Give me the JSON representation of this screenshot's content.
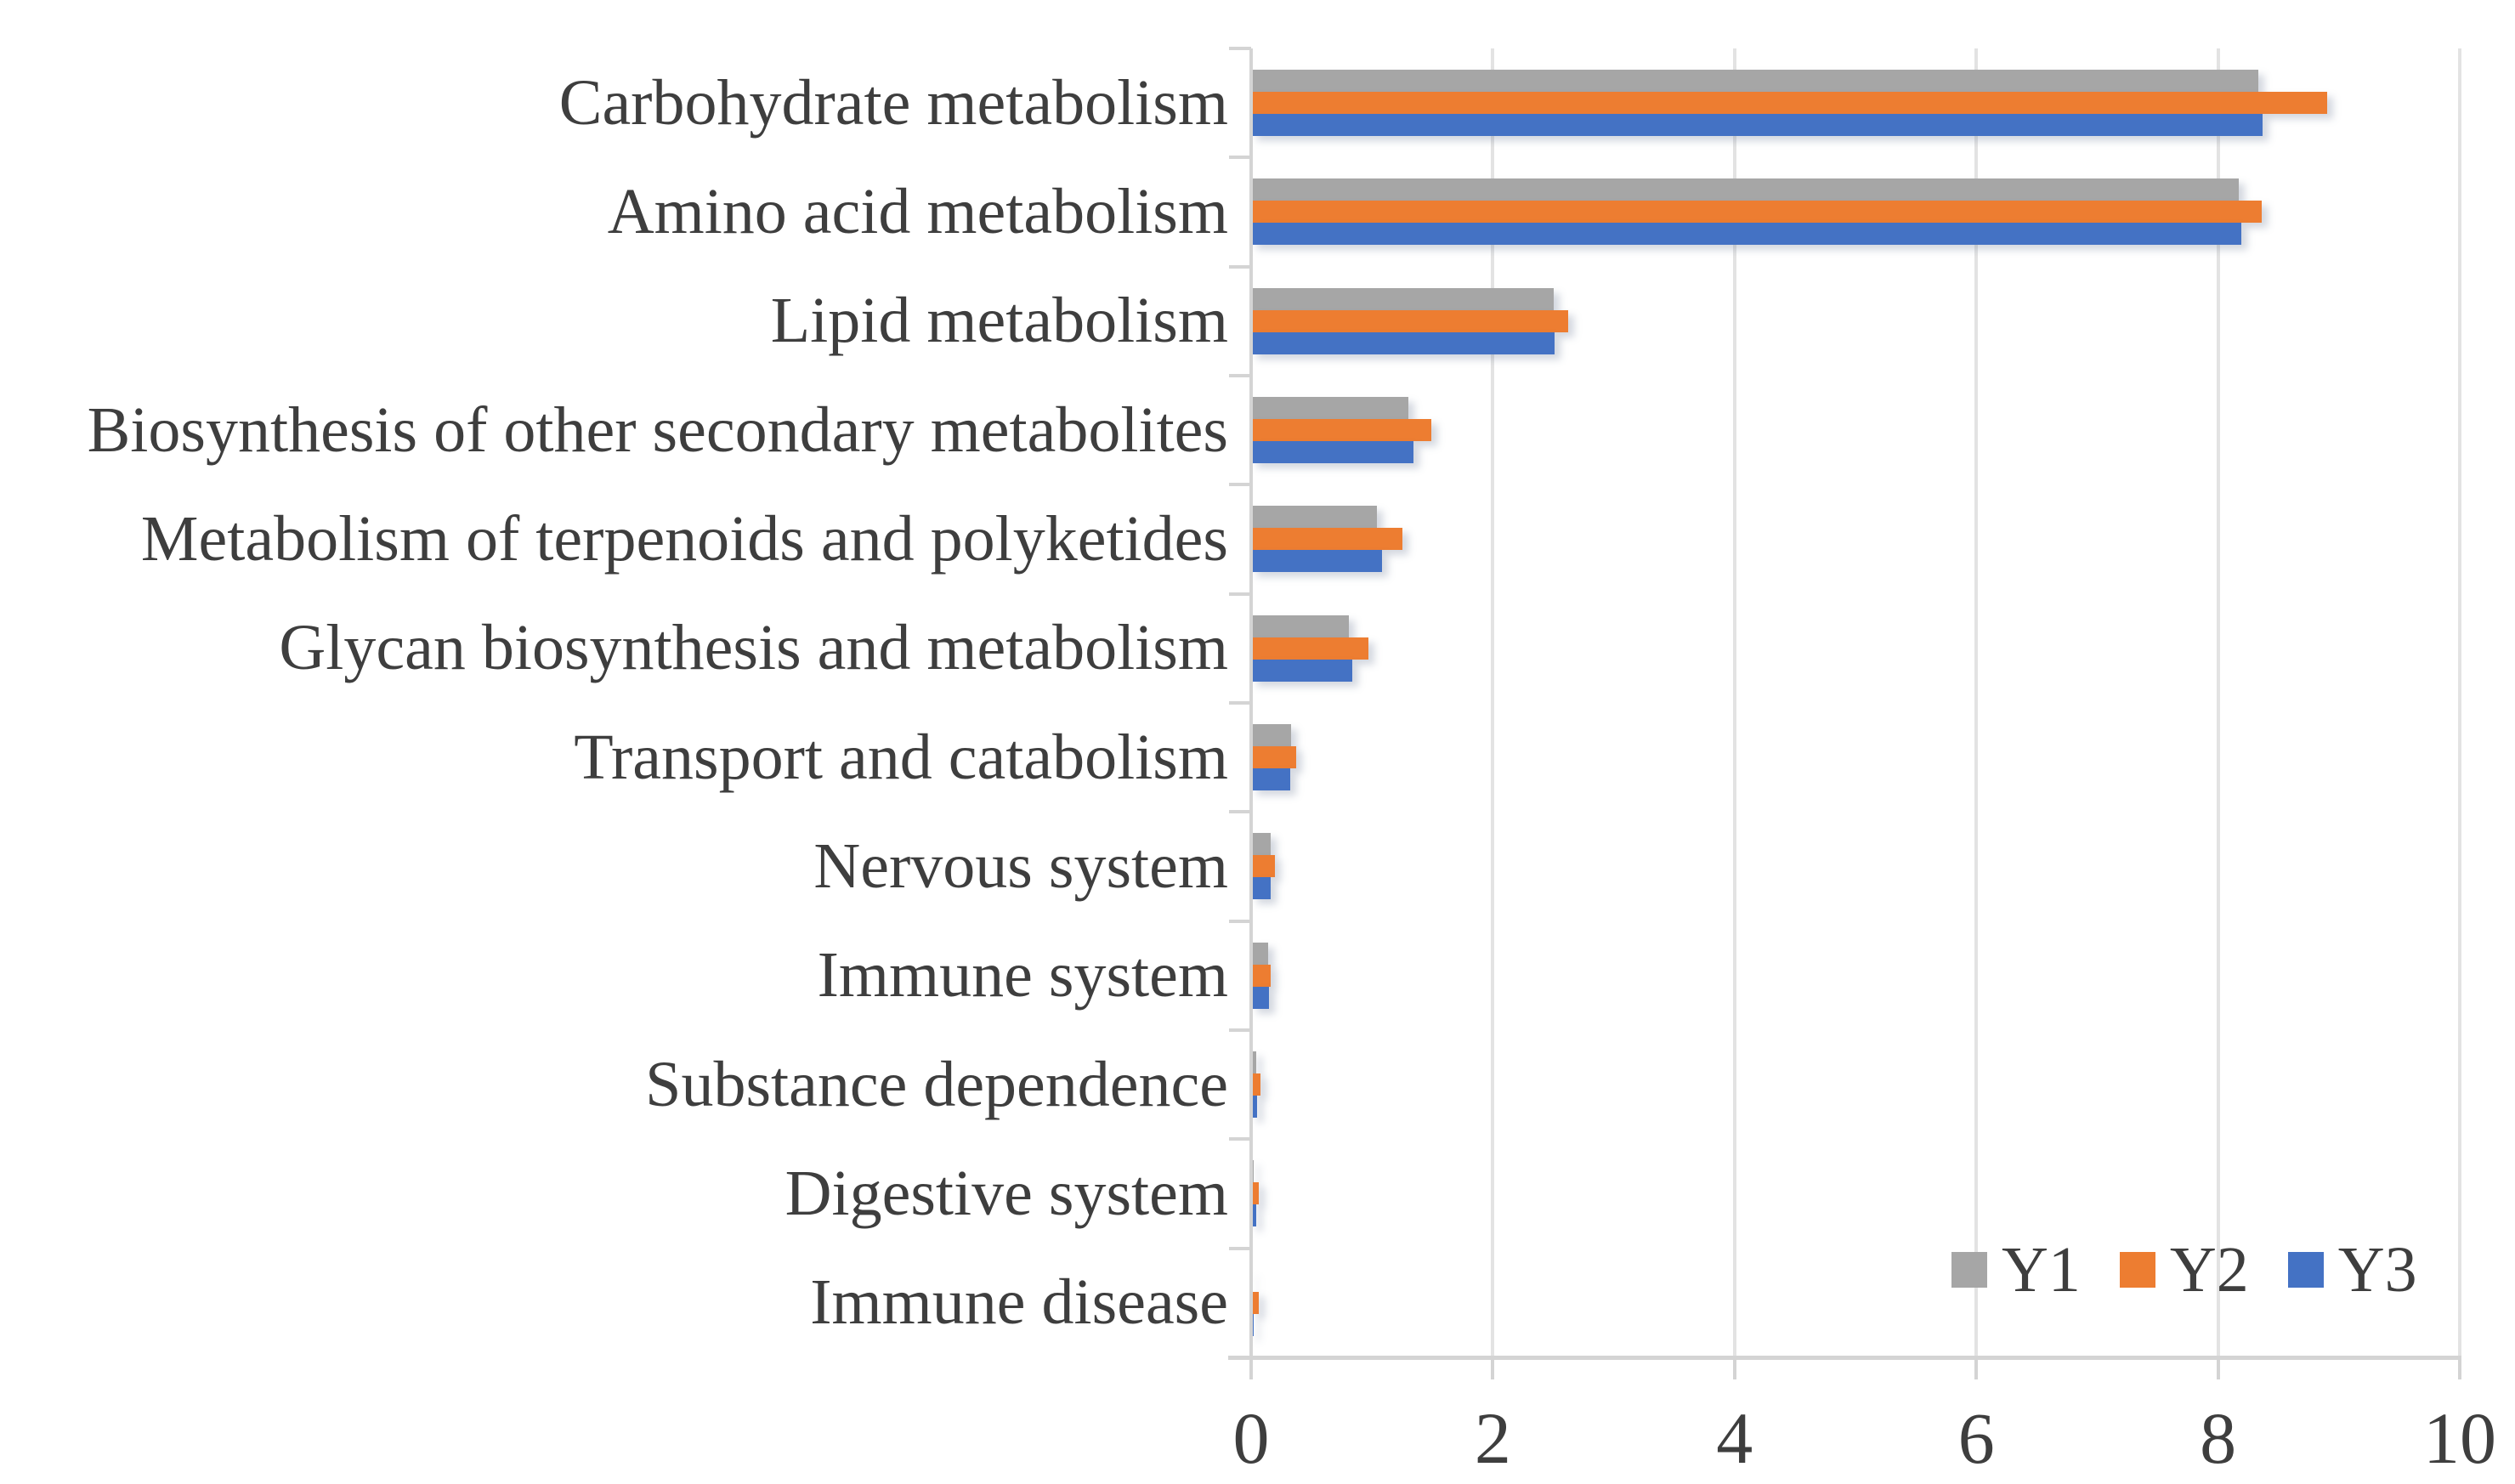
{
  "chart_data": {
    "type": "bar",
    "orientation": "horizontal",
    "title": "",
    "xlabel": "",
    "ylabel": "",
    "xlim": [
      0,
      10
    ],
    "x_ticks": [
      "0",
      "2",
      "4",
      "6",
      "8",
      "10"
    ],
    "grid": true,
    "legend_position": "inside-bottom-right",
    "categories": [
      "Carbohydrate metabolism",
      "Amino acid metabolism",
      "Lipid metabolism",
      "Biosynthesis of other secondary metabolites",
      "Metabolism of terpenoids and polyketides",
      "Glycan biosynthesis and metabolism",
      "Transport and catabolism",
      "Nervous system",
      "Immune system",
      "Substance dependence",
      "Digestive system",
      "Immune disease"
    ],
    "series": [
      {
        "name": "Y1",
        "color": "#A6A6A6",
        "values": [
          8.33,
          8.17,
          2.5,
          1.3,
          1.04,
          0.81,
          0.33,
          0.16,
          0.14,
          0.04,
          0.02,
          0.01
        ]
      },
      {
        "name": "Y2",
        "color": "#ED7D31",
        "values": [
          8.9,
          8.36,
          2.62,
          1.49,
          1.25,
          0.97,
          0.37,
          0.2,
          0.16,
          0.08,
          0.06,
          0.06
        ]
      },
      {
        "name": "Y3",
        "color": "#4472C4",
        "values": [
          8.37,
          8.19,
          2.51,
          1.34,
          1.08,
          0.84,
          0.32,
          0.16,
          0.15,
          0.05,
          0.04,
          0.02
        ]
      }
    ]
  },
  "axis_colors": {
    "grid": "#E3E3E3",
    "axis": "#D4D4D4",
    "text": "#3E3E3E"
  }
}
